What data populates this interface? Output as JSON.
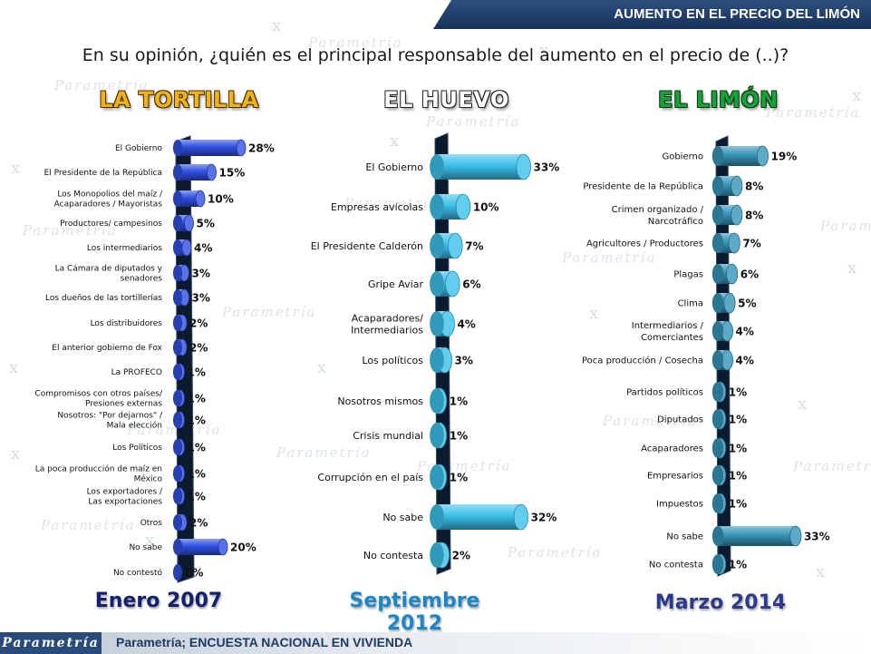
{
  "header": {
    "title": "AUMENTO EN EL PRECIO DEL LIMÓN"
  },
  "question": "En su opinión, ¿quién es el principal responsable del aumento en el precio de (..)?",
  "watermark_text": "Parametría",
  "footer": {
    "logo": "Parametría",
    "source": "Parametría; ENCUESTA NACIONAL  EN VIVIENDA"
  },
  "colors": {
    "tortilla_bar": "#2f4fe0",
    "huevo_bar": "#3cc0ea",
    "limon_bar": "#3694b8",
    "header": "#1f3d66"
  },
  "panels": [
    {
      "title": "LA TORTILLA",
      "period": "Enero 2007"
    },
    {
      "title": "EL HUEVO",
      "period": "Septiembre 2012"
    },
    {
      "title": "EL LIMÓN",
      "period": "Marzo 2014"
    }
  ],
  "chart_data": [
    {
      "type": "bar",
      "title": "LA TORTILLA",
      "subtitle": "Enero 2007",
      "orientation": "horizontal",
      "categories": [
        "El Gobierno",
        "El Presidente de la República",
        "Los Monopolios del maíz / Acaparadores / Mayoristas",
        "Productores/ campesinos",
        "Los intermediarios",
        "La Cámara de diputados y senadores",
        "Los dueños de las tortillerías",
        "Los distribuidores",
        "El anterior gobierno de Fox",
        "La PROFECO",
        "Compromisos con otros países/ Presiones externas",
        "Nosotros: \"Por dejarnos\" / Mala elección",
        "Los Políticos",
        "La poca producción de maíz en México",
        "Los exportadores / Las exportaciones",
        "Otros",
        "No sabe",
        "No contestó"
      ],
      "values": [
        28,
        15,
        10,
        5,
        4,
        3,
        3,
        2,
        2,
        1,
        1,
        1,
        1,
        1,
        1,
        2,
        20,
        0
      ],
      "value_labels": [
        "28%",
        "15%",
        "10%",
        "5%",
        "4%",
        "3%",
        "3%",
        "2%",
        "2%",
        "1%",
        "1%",
        "1%",
        "1%",
        "1%",
        "1%",
        "2%",
        "20%",
        "0%"
      ],
      "xlim": [
        0,
        50
      ],
      "grid": false
    },
    {
      "type": "bar",
      "title": "EL HUEVO",
      "subtitle": "Septiembre 2012",
      "orientation": "horizontal",
      "categories": [
        "El Gobierno",
        "Empresas avícolas",
        "El Presidente Calderón",
        "Gripe Aviar",
        "Acaparadores/ Intermediarios",
        "Los políticos",
        "Nosotros mismos",
        "Crisis mundial",
        "Corrupción en el país",
        "No sabe",
        "No contesta"
      ],
      "values": [
        33,
        10,
        7,
        6,
        4,
        3,
        1,
        1,
        1,
        32,
        2
      ],
      "value_labels": [
        "33%",
        "10%",
        "7%",
        "6%",
        "4%",
        "3%",
        "1%",
        "1%",
        "1%",
        "32%",
        "2%"
      ],
      "xlim": [
        0,
        50
      ],
      "grid": false
    },
    {
      "type": "bar",
      "title": "EL LIMÓN",
      "subtitle": "Marzo 2014",
      "orientation": "horizontal",
      "categories": [
        "Gobierno",
        "Presidente de la República",
        "Crimen organizado / Narcotráfico",
        "Agricultores / Productores",
        "Plagas",
        "Clima",
        "Intermediarios / Comerciantes",
        "Poca producción / Cosecha",
        "Partidos políticos",
        "Diputados",
        "Acaparadores",
        "Empresarios",
        "Impuestos",
        "No sabe",
        "No contesta"
      ],
      "values": [
        19,
        8,
        8,
        7,
        6,
        5,
        4,
        4,
        1,
        1,
        1,
        1,
        1,
        33,
        1
      ],
      "value_labels": [
        "19%",
        "8%",
        "8%",
        "7%",
        "6%",
        "5%",
        "4%",
        "4%",
        "1%",
        "1%",
        "1%",
        "1%",
        "1%",
        "33%",
        "1%"
      ],
      "xlim": [
        0,
        50
      ],
      "grid": false
    }
  ]
}
